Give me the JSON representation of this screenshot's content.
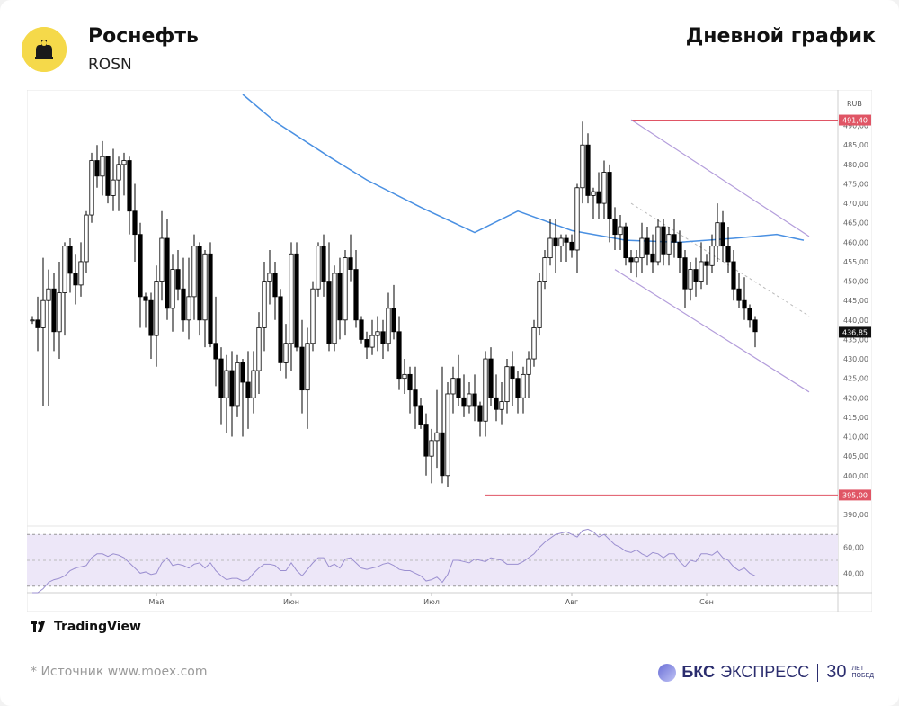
{
  "header": {
    "name": "Роснефть",
    "code": "ROSN",
    "chart_kind": "Дневной график"
  },
  "footer": {
    "tv_label": "TradingView",
    "source": "*  Источник www.moex.com",
    "brand_bold": "БКС",
    "brand_rest": "ЭКСПРЕСС",
    "brand_years": "30",
    "brand_sub1": "ЛЕТ",
    "brand_sub2": "ПОБЕД"
  },
  "colors": {
    "up": "#ffffff",
    "down": "#000000",
    "ma": "#4a90e2",
    "level": "#e05565",
    "channel": "#b39ddb",
    "rsi_line": "#9b8fd0",
    "rsi_band": "#ede7f8"
  },
  "chart_data": {
    "type": "candlestick",
    "currency": "RUB",
    "ylim": [
      387,
      498
    ],
    "y_ticks": [
      "390,00",
      "395,00",
      "400,00",
      "405,00",
      "410,00",
      "415,00",
      "420,00",
      "425,00",
      "430,00",
      "435,00",
      "440,00",
      "445,00",
      "450,00",
      "455,00",
      "460,00",
      "465,00",
      "470,00",
      "475,00",
      "480,00",
      "485,00",
      "490,00"
    ],
    "x_labels": [
      {
        "label": "Май",
        "index": 23
      },
      {
        "label": "Июн",
        "index": 48
      },
      {
        "label": "Июл",
        "index": 74
      },
      {
        "label": "Авг",
        "index": 100
      },
      {
        "label": "Сен",
        "index": 125
      }
    ],
    "price_labels": [
      {
        "label": "491,40",
        "value": 491.4,
        "kind": "level"
      },
      {
        "label": "436,85",
        "value": 436.85,
        "kind": "last"
      },
      {
        "label": "395,00",
        "value": 395.0,
        "kind": "level"
      }
    ],
    "levels": [
      {
        "value": 491.4,
        "from_index": 111
      },
      {
        "value": 395.0,
        "from_index": 84
      }
    ],
    "channel": {
      "upper": [
        [
          111,
          491.5
        ],
        [
          144,
          461.5
        ]
      ],
      "lower": [
        [
          108,
          453
        ],
        [
          144,
          421.5
        ]
      ],
      "mid": [
        [
          111,
          470
        ],
        [
          144,
          441
        ]
      ]
    },
    "moving_average": [
      [
        39,
        498
      ],
      [
        45,
        491
      ],
      [
        55,
        482
      ],
      [
        62,
        476
      ],
      [
        72,
        469
      ],
      [
        82,
        462.5
      ],
      [
        90,
        468
      ],
      [
        100,
        463
      ],
      [
        110,
        460.5
      ],
      [
        120,
        460
      ],
      [
        130,
        461
      ],
      [
        138,
        462
      ],
      [
        143,
        460.5
      ]
    ],
    "candles": [
      [
        440,
        441,
        439,
        440
      ],
      [
        440,
        446,
        432,
        438
      ],
      [
        438,
        456,
        418,
        445
      ],
      [
        445,
        453,
        418,
        448
      ],
      [
        448,
        452,
        432,
        437
      ],
      [
        437,
        455,
        430,
        447
      ],
      [
        447,
        460,
        436,
        459
      ],
      [
        459,
        461,
        447,
        452
      ],
      [
        452,
        457,
        444,
        449
      ],
      [
        449,
        460,
        446,
        455
      ],
      [
        455,
        468,
        452,
        467
      ],
      [
        467,
        483,
        465,
        481
      ],
      [
        481,
        485,
        474,
        477
      ],
      [
        477,
        486,
        472,
        482
      ],
      [
        482,
        482,
        470,
        472
      ],
      [
        472,
        484,
        468,
        476
      ],
      [
        476,
        482,
        468,
        480
      ],
      [
        480,
        483,
        472,
        481
      ],
      [
        481,
        482,
        462,
        468
      ],
      [
        468,
        475,
        455,
        462
      ],
      [
        462,
        465,
        438,
        446
      ],
      [
        446,
        447,
        438,
        445
      ],
      [
        445,
        447,
        430,
        436
      ],
      [
        436,
        454,
        428,
        450
      ],
      [
        450,
        468,
        445,
        461
      ],
      [
        461,
        466,
        440,
        443
      ],
      [
        443,
        457,
        437,
        453
      ],
      [
        453,
        458,
        445,
        448
      ],
      [
        448,
        456,
        437,
        440
      ],
      [
        440,
        456,
        435,
        446
      ],
      [
        446,
        462,
        440,
        459
      ],
      [
        459,
        460,
        436,
        440
      ],
      [
        440,
        458,
        433,
        457
      ],
      [
        457,
        460,
        433,
        434
      ],
      [
        434,
        446,
        423,
        430
      ],
      [
        430,
        433,
        413,
        420
      ],
      [
        420,
        431,
        411,
        427
      ],
      [
        427,
        432,
        410,
        418
      ],
      [
        418,
        431,
        415,
        429
      ],
      [
        429,
        430,
        410,
        424
      ],
      [
        424,
        432,
        412,
        420
      ],
      [
        420,
        432,
        416,
        427
      ],
      [
        427,
        442,
        421,
        438
      ],
      [
        438,
        455,
        432,
        450
      ],
      [
        450,
        458,
        444,
        452
      ],
      [
        452,
        455,
        440,
        446
      ],
      [
        446,
        448,
        427,
        429
      ],
      [
        429,
        439,
        425,
        434
      ],
      [
        434,
        460,
        427,
        457
      ],
      [
        457,
        460,
        432,
        433
      ],
      [
        433,
        440,
        416,
        422
      ],
      [
        422,
        438,
        412,
        434
      ],
      [
        434,
        450,
        432,
        448
      ],
      [
        448,
        460,
        446,
        459
      ],
      [
        459,
        462,
        446,
        450
      ],
      [
        450,
        460,
        432,
        434
      ],
      [
        434,
        454,
        432,
        452
      ],
      [
        452,
        456,
        435,
        440
      ],
      [
        440,
        458,
        436,
        456
      ],
      [
        456,
        462,
        450,
        453
      ],
      [
        453,
        458,
        438,
        440
      ],
      [
        440,
        441,
        434,
        435
      ],
      [
        435,
        437,
        430,
        433
      ],
      [
        433,
        440,
        431,
        436
      ],
      [
        436,
        441,
        432,
        437
      ],
      [
        437,
        440,
        430,
        434
      ],
      [
        434,
        447,
        432,
        443
      ],
      [
        443,
        449,
        435,
        437
      ],
      [
        437,
        441,
        422,
        425
      ],
      [
        425,
        430,
        421,
        426
      ],
      [
        426,
        428,
        416,
        422
      ],
      [
        422,
        428,
        412,
        418
      ],
      [
        418,
        420,
        412,
        413
      ],
      [
        413,
        416,
        400,
        405
      ],
      [
        405,
        412,
        398,
        409
      ],
      [
        409,
        422,
        402,
        411
      ],
      [
        411,
        428,
        398,
        400
      ],
      [
        400,
        424,
        397,
        421
      ],
      [
        421,
        428,
        416,
        425
      ],
      [
        425,
        431,
        418,
        420
      ],
      [
        420,
        426,
        415,
        418
      ],
      [
        418,
        424,
        416,
        421
      ],
      [
        421,
        426,
        414,
        418
      ],
      [
        418,
        419,
        410,
        414
      ],
      [
        414,
        432,
        410,
        430
      ],
      [
        430,
        433,
        418,
        420
      ],
      [
        420,
        426,
        414,
        417
      ],
      [
        417,
        424,
        413,
        419
      ],
      [
        419,
        430,
        416,
        428
      ],
      [
        428,
        432,
        418,
        425
      ],
      [
        425,
        427,
        416,
        420
      ],
      [
        420,
        428,
        416,
        426
      ],
      [
        426,
        432,
        420,
        430
      ],
      [
        430,
        440,
        428,
        438
      ],
      [
        438,
        452,
        436,
        450
      ],
      [
        450,
        458,
        448,
        456
      ],
      [
        456,
        466,
        454,
        461
      ],
      [
        461,
        466,
        452,
        459
      ],
      [
        459,
        462,
        455,
        461
      ],
      [
        461,
        462,
        455,
        460
      ],
      [
        460,
        462,
        456,
        458
      ],
      [
        458,
        475,
        452,
        474
      ],
      [
        474,
        491,
        470,
        485
      ],
      [
        485,
        488,
        470,
        472
      ],
      [
        472,
        474,
        466,
        473
      ],
      [
        473,
        478,
        466,
        470
      ],
      [
        470,
        481,
        466,
        478
      ],
      [
        478,
        480,
        460,
        466
      ],
      [
        466,
        469,
        458,
        462
      ],
      [
        462,
        467,
        458,
        464
      ],
      [
        464,
        465,
        454,
        456
      ],
      [
        456,
        458,
        452,
        455
      ],
      [
        455,
        458,
        451,
        456
      ],
      [
        456,
        465,
        452,
        461
      ],
      [
        461,
        464,
        454,
        457
      ],
      [
        457,
        462,
        452,
        455
      ],
      [
        455,
        466,
        454,
        464
      ],
      [
        464,
        466,
        454,
        457
      ],
      [
        457,
        464,
        454,
        462
      ],
      [
        462,
        466,
        456,
        460
      ],
      [
        460,
        463,
        452,
        456
      ],
      [
        456,
        458,
        443,
        448
      ],
      [
        448,
        455,
        445,
        453
      ],
      [
        453,
        456,
        446,
        450
      ],
      [
        450,
        460,
        448,
        455
      ],
      [
        455,
        457,
        449,
        454
      ],
      [
        454,
        462,
        452,
        459
      ],
      [
        459,
        470,
        455,
        465
      ],
      [
        465,
        468,
        455,
        459
      ],
      [
        459,
        464,
        452,
        455
      ],
      [
        455,
        458,
        445,
        448
      ],
      [
        448,
        452,
        443,
        445
      ],
      [
        445,
        451,
        440,
        443
      ],
      [
        443,
        444,
        438,
        440
      ],
      [
        440,
        441,
        433,
        437
      ]
    ],
    "rsi": {
      "ticks": [
        "60,00",
        "40,00"
      ],
      "band": [
        30,
        70
      ],
      "scale": [
        25,
        75
      ],
      "values": [
        22,
        24,
        28,
        33,
        35,
        36,
        38,
        42,
        44,
        45,
        46,
        52,
        55,
        55,
        53,
        55,
        54,
        52,
        48,
        44,
        40,
        41,
        39,
        40,
        48,
        52,
        46,
        47,
        46,
        44,
        47,
        48,
        44,
        48,
        42,
        38,
        35,
        36,
        36,
        34,
        35,
        40,
        44,
        47,
        47,
        46,
        42,
        42,
        48,
        42,
        38,
        43,
        48,
        52,
        52,
        45,
        47,
        44,
        51,
        52,
        48,
        44,
        43,
        44,
        45,
        47,
        48,
        46,
        43,
        42,
        42,
        40,
        38,
        34,
        35,
        37,
        33,
        39,
        50,
        50,
        49,
        48,
        51,
        50,
        49,
        52,
        51,
        50,
        47,
        47,
        47,
        49,
        52,
        55,
        60,
        64,
        67,
        70,
        71,
        72,
        70,
        68,
        73,
        74,
        72,
        68,
        70,
        66,
        62,
        60,
        57,
        56,
        58,
        55,
        53,
        56,
        55,
        52,
        55,
        55,
        49,
        45,
        50,
        49,
        55,
        55,
        54,
        57,
        52,
        50,
        45,
        42,
        44,
        40,
        38
      ]
    }
  }
}
